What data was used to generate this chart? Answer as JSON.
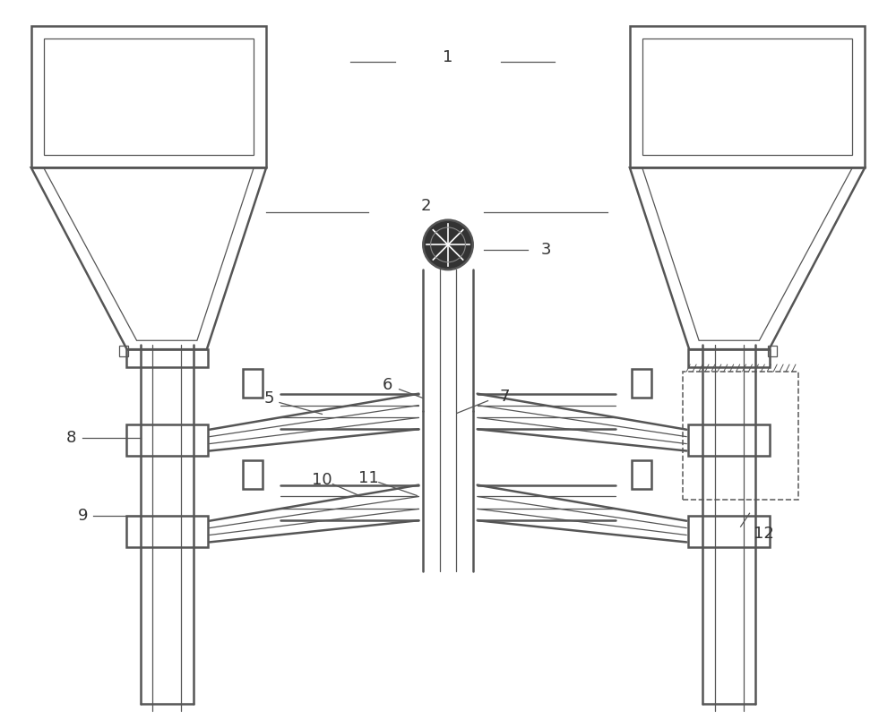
{
  "bg_color": "#ffffff",
  "line_color": "#555555",
  "lw_outer": 1.8,
  "lw_inner": 0.9,
  "label_fontsize": 13,
  "label_color": "#333333",
  "figsize": [
    10.0,
    8.13
  ]
}
